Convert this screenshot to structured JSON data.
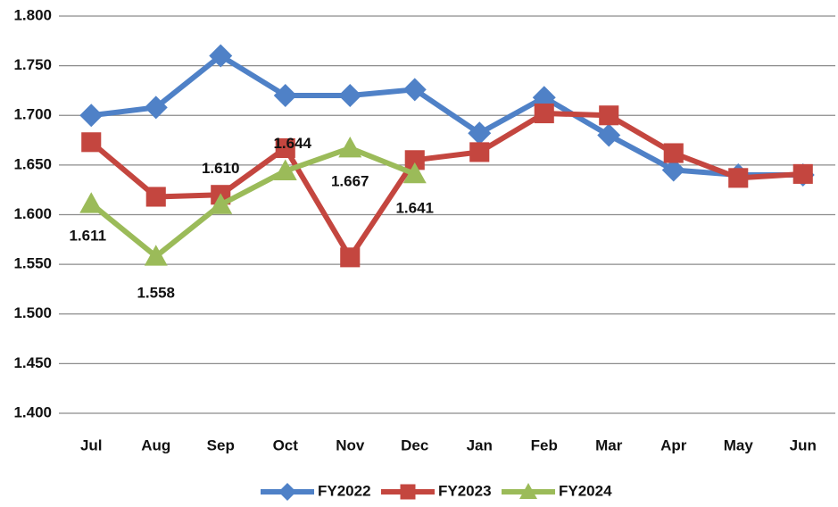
{
  "chart_data": {
    "type": "line",
    "categories": [
      "Jul",
      "Aug",
      "Sep",
      "Oct",
      "Nov",
      "Dec",
      "Jan",
      "Feb",
      "Mar",
      "Apr",
      "May",
      "Jun"
    ],
    "ylim": [
      1.4,
      1.8
    ],
    "yticks": [
      {
        "value": 1.4,
        "label": "1.400"
      },
      {
        "value": 1.45,
        "label": "1.450"
      },
      {
        "value": 1.5,
        "label": "1.500"
      },
      {
        "value": 1.55,
        "label": "1.550"
      },
      {
        "value": 1.6,
        "label": "1.600"
      },
      {
        "value": 1.65,
        "label": "1.650"
      },
      {
        "value": 1.7,
        "label": "1.700"
      },
      {
        "value": 1.75,
        "label": "1.750"
      },
      {
        "value": 1.8,
        "label": "1.800"
      }
    ],
    "grid": true,
    "legend": "bottom",
    "series": [
      {
        "name": "FY2022",
        "color": "#4f81c7",
        "marker": "diamond",
        "values": [
          1.7,
          1.708,
          1.76,
          1.72,
          1.72,
          1.726,
          1.682,
          1.718,
          1.68,
          1.645,
          1.64,
          1.64
        ]
      },
      {
        "name": "FY2023",
        "color": "#c4463f",
        "marker": "square",
        "values": [
          1.673,
          1.618,
          1.62,
          1.667,
          1.557,
          1.655,
          1.663,
          1.702,
          1.7,
          1.662,
          1.637,
          1.641
        ]
      },
      {
        "name": "FY2024",
        "color": "#9bbb59",
        "marker": "triangle",
        "values": [
          1.611,
          1.558,
          1.61,
          1.644,
          1.667,
          1.641,
          null,
          null,
          null,
          null,
          null,
          null
        ],
        "value_labels": [
          "1.611",
          "1.558",
          "1.610",
          "1.644",
          "1.667",
          "1.641",
          null,
          null,
          null,
          null,
          null,
          null
        ]
      }
    ]
  }
}
